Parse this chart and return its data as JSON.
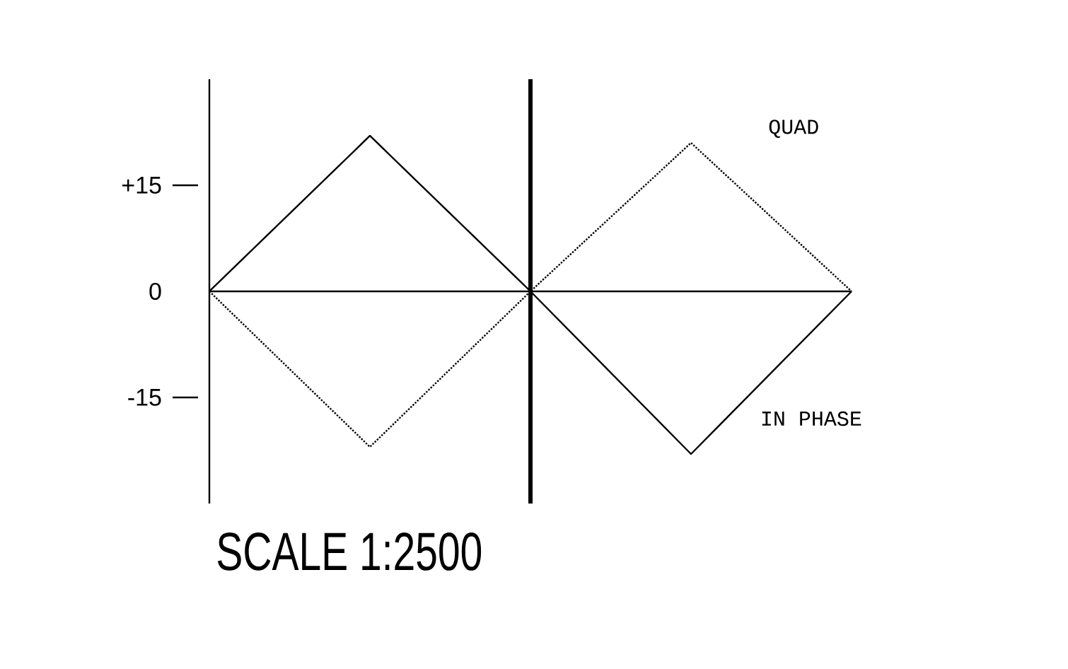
{
  "chart_data": {
    "type": "line",
    "categories": [
      null,
      null,
      null,
      null,
      null
    ],
    "series": [
      {
        "name": "QUAD",
        "color": "#000000",
        "line_style": "dotted",
        "values": [
          0,
          -22,
          0,
          21,
          0
        ]
      },
      {
        "name": "IN PHASE",
        "color": "#000000",
        "line_style": "solid",
        "values": [
          0,
          22,
          0,
          -23,
          0
        ]
      }
    ],
    "ylim": [
      -30,
      30
    ],
    "yticks": [
      {
        "value": 15,
        "label": "+15"
      },
      0,
      -15
    ],
    "annotations": [
      "SCALE 1:2500"
    ],
    "marker": "none"
  }
}
